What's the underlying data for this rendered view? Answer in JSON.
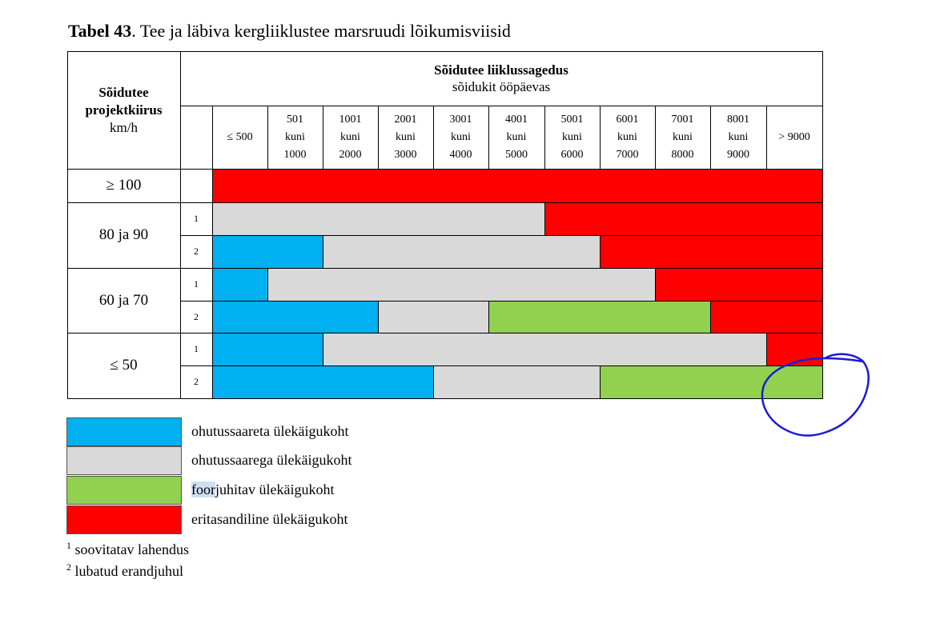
{
  "caption": {
    "number": "Tabel 43",
    "title": ". Tee ja läbiva kergliiklustee marsruudi lõikumisviisid"
  },
  "header": {
    "speed_line1": "Sõidutee",
    "speed_line2": "projektkiirus",
    "speed_unit": "km/h",
    "traffic_title": "Sõidutee liiklussagedus",
    "traffic_unit": "sõidukit ööpäevas"
  },
  "ranges": [
    [
      "≤ 500"
    ],
    [
      "501",
      "kuni",
      "1000"
    ],
    [
      "1001",
      "kuni",
      "2000"
    ],
    [
      "2001",
      "kuni",
      "3000"
    ],
    [
      "3001",
      "kuni",
      "4000"
    ],
    [
      "4001",
      "kuni",
      "5000"
    ],
    [
      "5001",
      "kuni",
      "6000"
    ],
    [
      "6001",
      "kuni",
      "7000"
    ],
    [
      "7001",
      "kuni",
      "8000"
    ],
    [
      "8001",
      "kuni",
      "9000"
    ],
    [
      "> 9000"
    ]
  ],
  "speeds": [
    {
      "label": "≥ 100",
      "rows": [
        {
          "num": "",
          "segments": [
            {
              "type": "red",
              "from": 0,
              "to": 11
            }
          ]
        }
      ]
    },
    {
      "label": "80 ja 90",
      "rows": [
        {
          "num": "1",
          "segments": [
            {
              "type": "grey",
              "from": 0,
              "to": 6
            },
            {
              "type": "red",
              "from": 6,
              "to": 11
            }
          ]
        },
        {
          "num": "2",
          "segments": [
            {
              "type": "blue",
              "from": 0,
              "to": 2
            },
            {
              "type": "grey",
              "from": 2,
              "to": 7
            },
            {
              "type": "red",
              "from": 7,
              "to": 11
            }
          ]
        }
      ]
    },
    {
      "label": "60 ja 70",
      "rows": [
        {
          "num": "1",
          "segments": [
            {
              "type": "blue",
              "from": 0,
              "to": 1
            },
            {
              "type": "grey",
              "from": 1,
              "to": 8
            },
            {
              "type": "red",
              "from": 8,
              "to": 11
            }
          ]
        },
        {
          "num": "2",
          "segments": [
            {
              "type": "blue",
              "from": 0,
              "to": 3
            },
            {
              "type": "grey",
              "from": 3,
              "to": 5
            },
            {
              "type": "green",
              "from": 5,
              "to": 9
            },
            {
              "type": "red",
              "from": 9,
              "to": 11
            }
          ]
        }
      ]
    },
    {
      "label": "≤ 50",
      "rows": [
        {
          "num": "1",
          "segments": [
            {
              "type": "blue",
              "from": 0,
              "to": 2
            },
            {
              "type": "grey",
              "from": 2,
              "to": 10
            },
            {
              "type": "red",
              "from": 10,
              "to": 11
            }
          ]
        },
        {
          "num": "2",
          "segments": [
            {
              "type": "blue",
              "from": 0,
              "to": 4
            },
            {
              "type": "grey",
              "from": 4,
              "to": 7
            },
            {
              "type": "green",
              "from": 7,
              "to": 11
            }
          ]
        }
      ]
    }
  ],
  "colors": {
    "blue": "#00b0f0",
    "grey": "#d9d9d9",
    "green": "#92d050",
    "red": "#ff0000",
    "annotation": "#1a1ad6",
    "highlight": "#cfe0f3"
  },
  "legend": [
    {
      "type": "blue",
      "label": "ohutussaareta ülekäigukoht"
    },
    {
      "type": "grey",
      "label": "ohutussaarega ülekäigukoht"
    },
    {
      "type": "green",
      "label_highlight": "foor",
      "label": "juhitav ülekäigukoht"
    },
    {
      "type": "red",
      "label": "eritasandiline ülekäigukoht"
    }
  ],
  "footnotes": [
    {
      "mark": "1",
      "text": "soovitatav lahendus"
    },
    {
      "mark": "2",
      "text": "lubatud erandjuhul"
    }
  ]
}
